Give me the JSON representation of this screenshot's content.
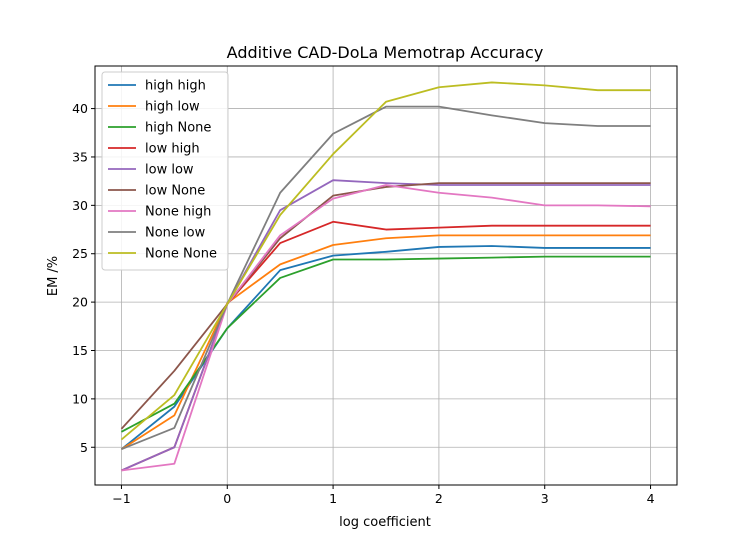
{
  "chart_data": {
    "type": "line",
    "title": "Additive CAD-DoLa Memotrap Accuracy",
    "xlabel": "log coefficient",
    "ylabel": "EM /%",
    "x": [
      -1,
      -0.5,
      0,
      0.5,
      1,
      1.5,
      2,
      2.5,
      3,
      3.5,
      4
    ],
    "xlim": [
      -1.25,
      4.25
    ],
    "ylim": [
      1.1,
      44.4
    ],
    "xticks": [
      -1,
      0,
      1,
      2,
      3,
      4
    ],
    "yticks": [
      5,
      10,
      15,
      20,
      25,
      30,
      35,
      40
    ],
    "grid": true,
    "legend_position": "top-left",
    "series": [
      {
        "name": "high high",
        "color": "#1f77b4",
        "values": [
          4.8,
          9.2,
          17.3,
          23.3,
          24.8,
          25.2,
          25.7,
          25.8,
          25.6,
          25.6,
          25.6
        ]
      },
      {
        "name": "high low",
        "color": "#ff7f0e",
        "values": [
          4.8,
          8.3,
          19.9,
          23.9,
          25.9,
          26.6,
          26.9,
          26.9,
          26.9,
          26.9,
          26.9
        ]
      },
      {
        "name": "high None",
        "color": "#2ca02c",
        "values": [
          6.6,
          9.5,
          17.3,
          22.5,
          24.4,
          24.4,
          24.5,
          24.6,
          24.7,
          24.7,
          24.7
        ]
      },
      {
        "name": "low high",
        "color": "#d62728",
        "values": [
          2.6,
          5.0,
          19.8,
          26.1,
          28.3,
          27.5,
          27.7,
          27.9,
          27.9,
          27.9,
          27.9
        ]
      },
      {
        "name": "low low",
        "color": "#9467bd",
        "values": [
          2.6,
          5.0,
          19.8,
          29.5,
          32.6,
          32.3,
          32.1,
          32.1,
          32.1,
          32.1,
          32.1
        ]
      },
      {
        "name": "low None",
        "color": "#8c564b",
        "values": [
          6.9,
          12.9,
          19.8,
          26.6,
          31.0,
          31.9,
          32.3,
          32.3,
          32.3,
          32.3,
          32.3
        ]
      },
      {
        "name": "None high",
        "color": "#e377c2",
        "values": [
          2.6,
          3.3,
          19.8,
          26.9,
          30.7,
          32.1,
          31.3,
          30.8,
          30.0,
          30.0,
          29.9
        ]
      },
      {
        "name": "None low",
        "color": "#7f7f7f",
        "values": [
          4.8,
          7.0,
          19.8,
          31.3,
          37.4,
          40.2,
          40.2,
          39.3,
          38.5,
          38.2,
          38.2
        ]
      },
      {
        "name": "None None",
        "color": "#bcbd22",
        "values": [
          5.8,
          10.4,
          19.8,
          29.0,
          35.3,
          40.7,
          42.2,
          42.7,
          42.4,
          41.9,
          41.9
        ]
      }
    ]
  }
}
